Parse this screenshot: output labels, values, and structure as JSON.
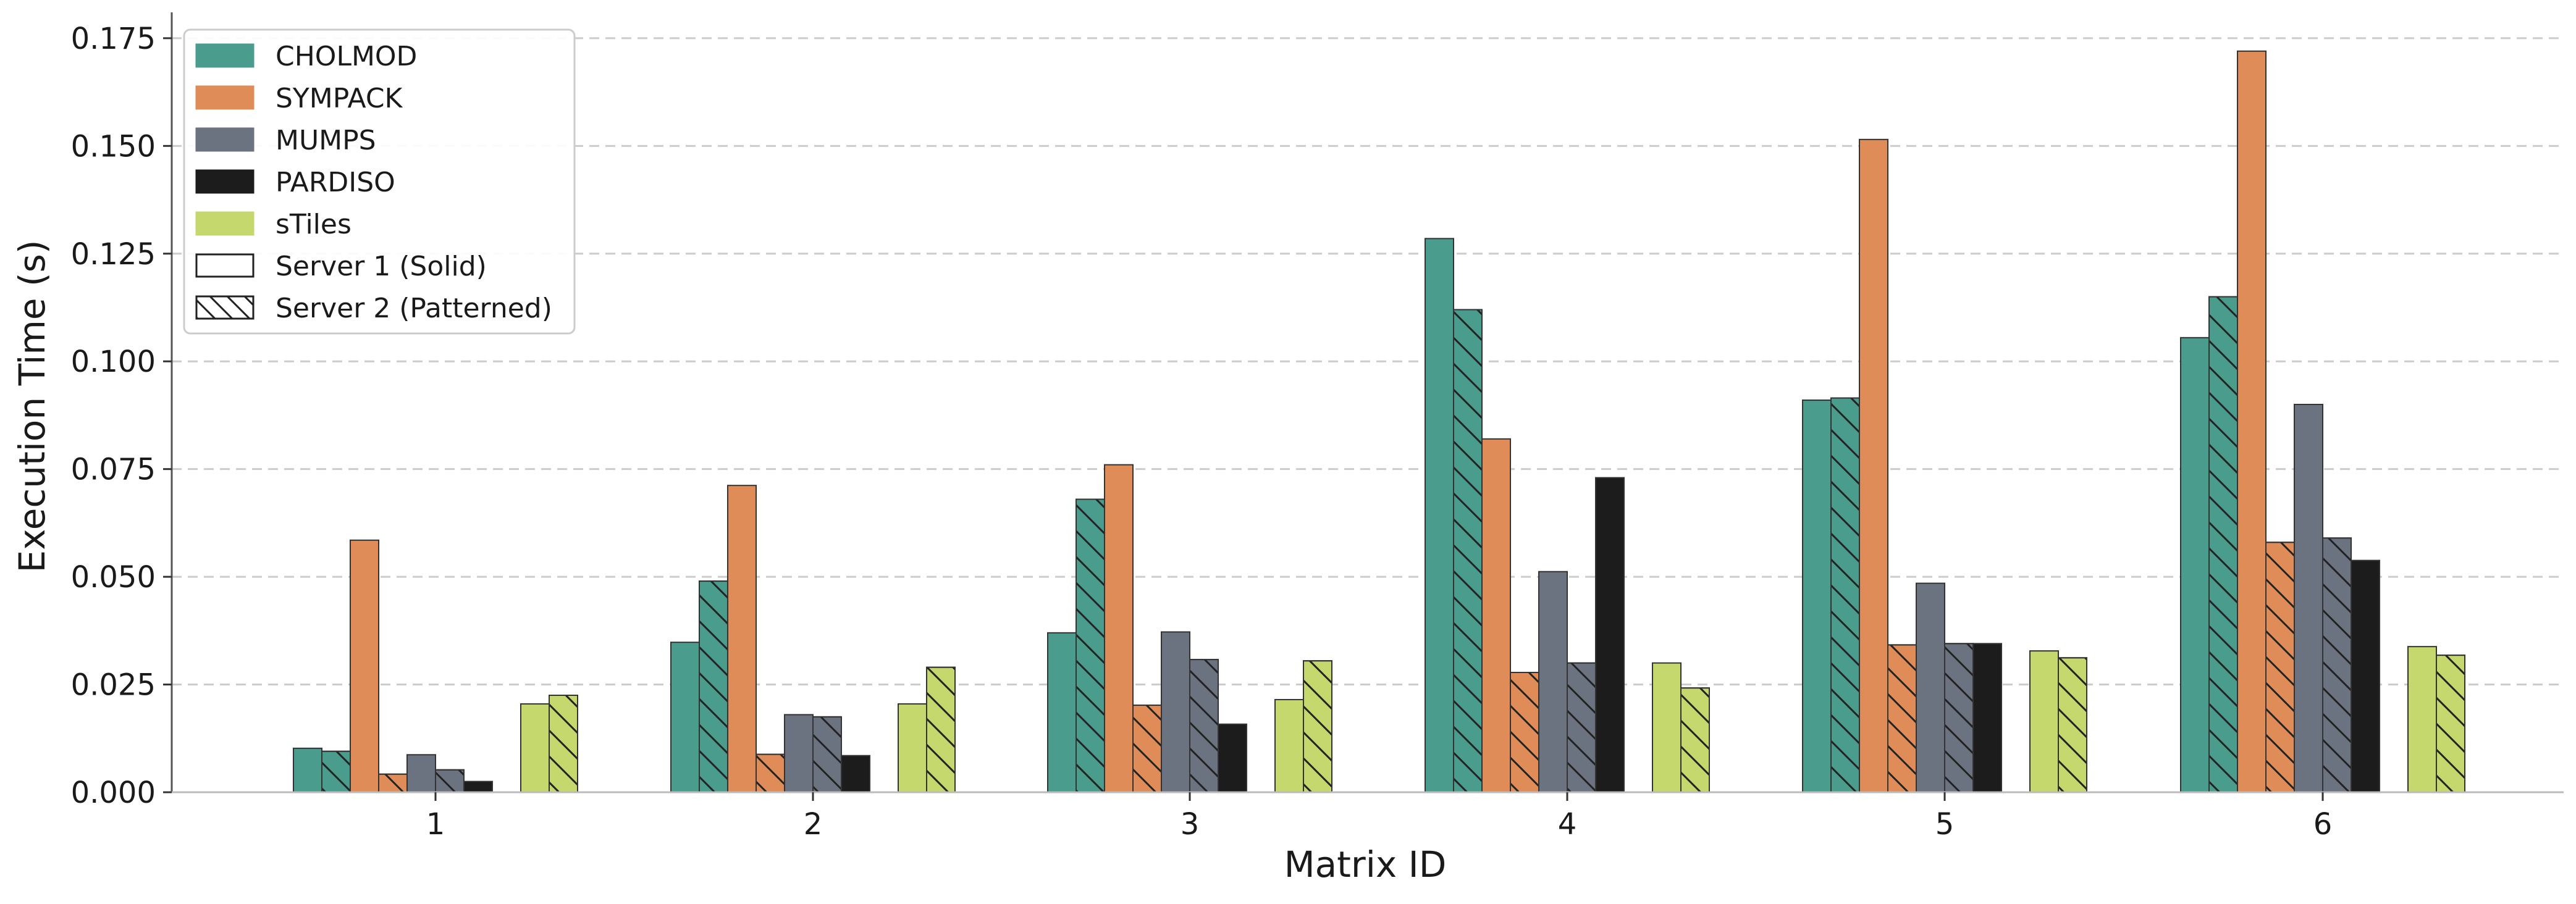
{
  "chart_data": {
    "type": "bar",
    "title": "",
    "xlabel": "Matrix ID",
    "ylabel": "Execution Time (s)",
    "categories": [
      "1",
      "2",
      "3",
      "4",
      "5",
      "6"
    ],
    "ylim": [
      0,
      0.181
    ],
    "yticks": [
      0.0,
      0.025,
      0.05,
      0.075,
      0.1,
      0.125,
      0.15,
      0.175
    ],
    "ytick_labels": [
      "0.000",
      "0.025",
      "0.050",
      "0.075",
      "0.100",
      "0.125",
      "0.150",
      "0.175"
    ],
    "grid": "horizontal-dashed",
    "legend_position": "top-left",
    "servers": [
      {
        "name": "Server 1 (Solid)",
        "pattern": "solid"
      },
      {
        "name": "Server 2 (Patterned)",
        "pattern": "hatched"
      }
    ],
    "solvers": [
      {
        "name": "CHOLMOD",
        "color": "#4a9c8c"
      },
      {
        "name": "SYMPACK",
        "color": "#e08c58"
      },
      {
        "name": "MUMPS",
        "color": "#6b7280"
      },
      {
        "name": "PARDISO",
        "color": "#1c1c1c"
      },
      {
        "name": "sTiles",
        "color": "#c5d86d"
      }
    ],
    "series": [
      {
        "name": "CHOLMOD - Server 1",
        "solver": "CHOLMOD",
        "server": 1,
        "values": [
          0.0102,
          0.0348,
          0.037,
          0.1285,
          0.091,
          0.1055
        ]
      },
      {
        "name": "CHOLMOD - Server 2",
        "solver": "CHOLMOD",
        "server": 2,
        "values": [
          0.0095,
          0.049,
          0.068,
          0.112,
          0.0915,
          0.115
        ]
      },
      {
        "name": "SYMPACK - Server 1",
        "solver": "SYMPACK",
        "server": 1,
        "values": [
          0.0585,
          0.0712,
          0.076,
          0.082,
          0.1515,
          0.172
        ]
      },
      {
        "name": "SYMPACK - Server 2",
        "solver": "SYMPACK",
        "server": 2,
        "values": [
          0.0042,
          0.0088,
          0.0202,
          0.0278,
          0.0342,
          0.058
        ]
      },
      {
        "name": "MUMPS - Server 1",
        "solver": "MUMPS",
        "server": 1,
        "values": [
          0.0087,
          0.018,
          0.0372,
          0.0512,
          0.0485,
          0.09
        ]
      },
      {
        "name": "MUMPS - Server 2",
        "solver": "MUMPS",
        "server": 2,
        "values": [
          0.0052,
          0.0175,
          0.0308,
          0.03,
          0.0345,
          0.059
        ]
      },
      {
        "name": "PARDISO - Server 1",
        "solver": "PARDISO",
        "server": 1,
        "values": [
          0.0025,
          0.0085,
          0.0158,
          0.073,
          0.0345,
          0.0538
        ]
      },
      {
        "name": "sTiles - Server 1",
        "solver": "sTiles",
        "server": 1,
        "values": [
          0.0205,
          0.0205,
          0.0215,
          0.03,
          0.0328,
          0.0338
        ]
      },
      {
        "name": "sTiles - Server 2",
        "solver": "sTiles",
        "server": 2,
        "values": [
          0.0225,
          0.029,
          0.0305,
          0.0242,
          0.0312,
          0.0318
        ]
      }
    ],
    "legend": [
      {
        "label": "CHOLMOD",
        "color": "#4a9c8c",
        "hatched": false
      },
      {
        "label": "SYMPACK",
        "color": "#e08c58",
        "hatched": false
      },
      {
        "label": "MUMPS",
        "color": "#6b7280",
        "hatched": false
      },
      {
        "label": "PARDISO",
        "color": "#1c1c1c",
        "hatched": false
      },
      {
        "label": "sTiles",
        "color": "#c5d86d",
        "hatched": false
      },
      {
        "label": "Server 1 (Solid)",
        "color": "#ffffff",
        "hatched": false
      },
      {
        "label": "Server 2 (Patterned)",
        "color": "#ffffff",
        "hatched": true
      }
    ]
  }
}
